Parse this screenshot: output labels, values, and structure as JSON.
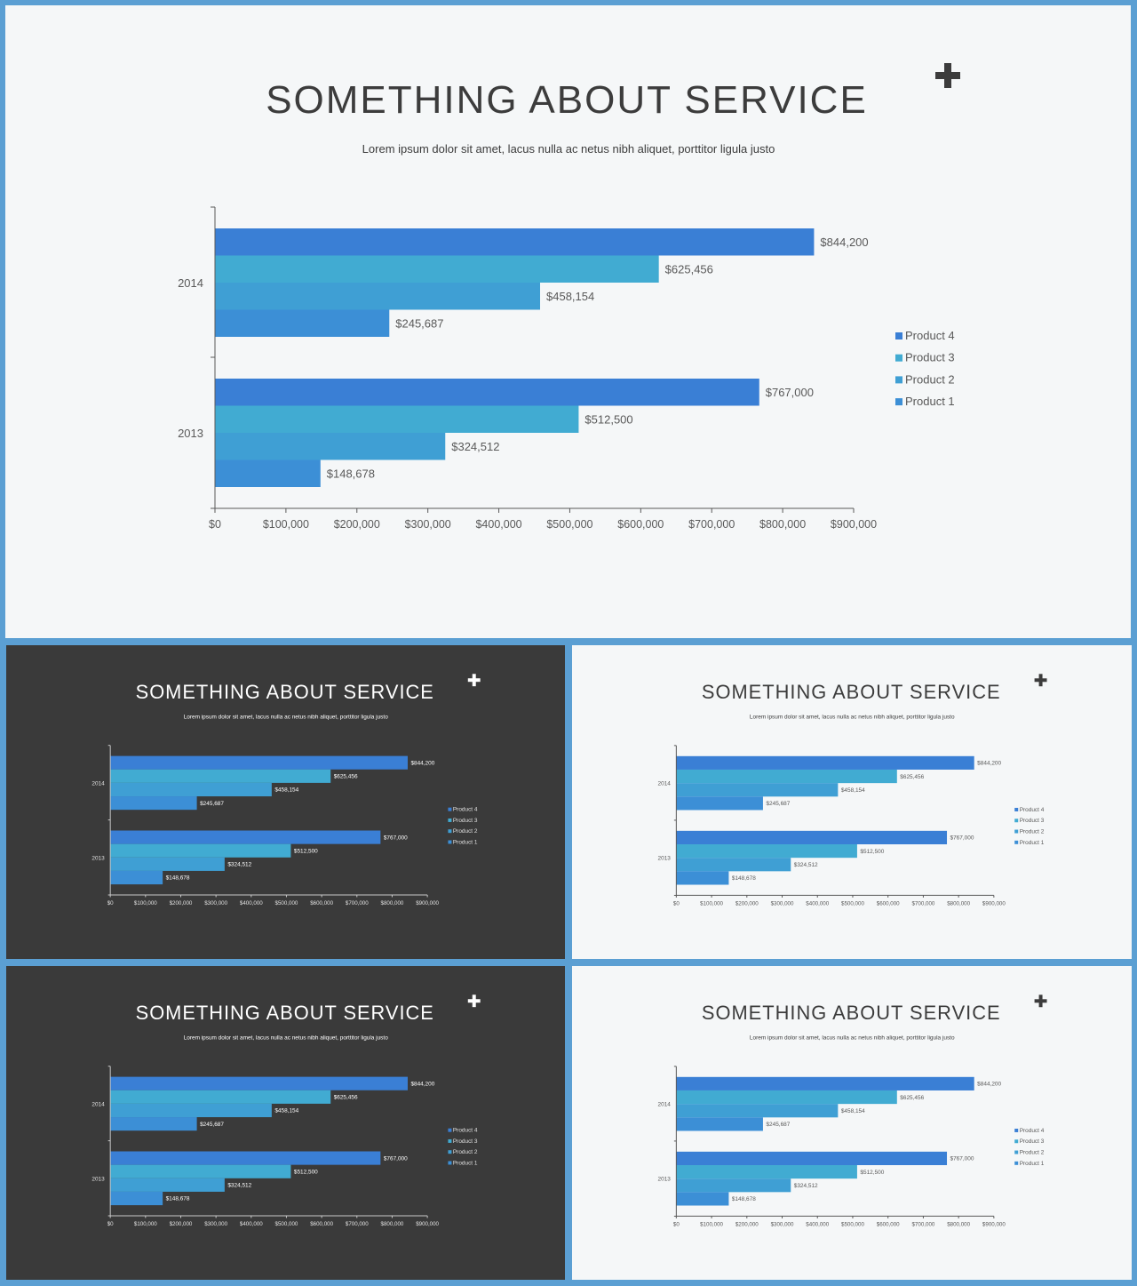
{
  "slides": [
    {
      "theme": "light",
      "title": "SOMETHING  ABOUT SERVICE",
      "subtitle": "Lorem ipsum dolor sit amet, lacus nulla ac netus nibh aliquet, porttitor ligula justo",
      "plus_icon": "plus-icon"
    },
    {
      "theme": "dark",
      "title": "SOMETHING  ABOUT SERVICE",
      "subtitle": "Lorem ipsum dolor sit amet, lacus nulla ac netus nibh aliquet, porttitor ligula justo",
      "plus_icon": "plus-icon"
    },
    {
      "theme": "light",
      "title": "SOMETHING  ABOUT SERVICE",
      "subtitle": "Lorem ipsum dolor sit amet, lacus nulla ac netus nibh aliquet, porttitor ligula justo",
      "plus_icon": "plus-icon"
    },
    {
      "theme": "dark",
      "title": "SOMETHING  ABOUT SERVICE",
      "subtitle": "Lorem ipsum dolor sit amet, lacus nulla ac netus nibh aliquet, porttitor ligula justo",
      "plus_icon": "plus-icon"
    },
    {
      "theme": "light",
      "title": "SOMETHING  ABOUT SERVICE",
      "subtitle": "Lorem ipsum dolor sit amet, lacus nulla ac netus nibh aliquet, porttitor ligula justo",
      "plus_icon": "plus-icon"
    }
  ],
  "chart_data": {
    "type": "bar",
    "orientation": "horizontal",
    "categories": [
      "2014",
      "2013"
    ],
    "series": [
      {
        "name": "Product 4",
        "color": "#3a7fd5",
        "values": [
          844200,
          767000
        ],
        "labels": [
          "$844,200",
          "$767,000"
        ]
      },
      {
        "name": "Product 3",
        "color": "#41abd2",
        "values": [
          625456,
          512500
        ],
        "labels": [
          "$625,456",
          "$512,500"
        ]
      },
      {
        "name": "Product 2",
        "color": "#3f9fd4",
        "values": [
          458154,
          324512
        ],
        "labels": [
          "$458,154",
          "$324,512"
        ]
      },
      {
        "name": "Product 1",
        "color": "#3c8fd6",
        "values": [
          245687,
          148678
        ],
        "labels": [
          "$245,687",
          "$148,678"
        ]
      }
    ],
    "xlim": [
      0,
      900000
    ],
    "xticks": [
      0,
      100000,
      200000,
      300000,
      400000,
      500000,
      600000,
      700000,
      800000,
      900000
    ],
    "xtick_labels": [
      "$0",
      "$100,000",
      "$200,000",
      "$300,000",
      "$400,000",
      "$500,000",
      "$600,000",
      "$700,000",
      "$800,000",
      "$900,000"
    ],
    "legend_position": "right",
    "grid": false
  }
}
